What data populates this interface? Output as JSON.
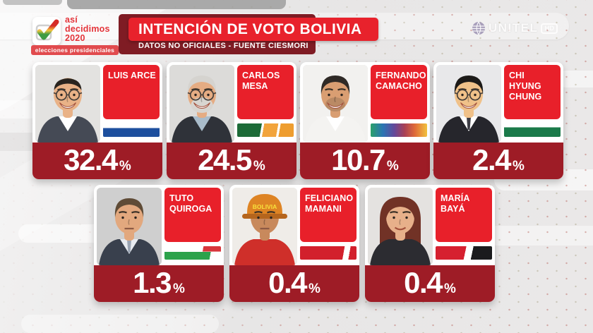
{
  "branding": {
    "logo": {
      "line1": "así",
      "line2": "decidimos",
      "line3": "2020",
      "badge": "elecciones presidenciales",
      "icon": "checkmark-icon",
      "check_colors": [
        "#d52b27",
        "#f5c53c",
        "#3f9c44"
      ]
    },
    "channel": {
      "name": "UNITEL",
      "quality": "HD",
      "icon": "globe-icon"
    }
  },
  "header": {
    "title": "INTENCIÓN DE VOTO BOLIVIA",
    "subtitle": "DATOS NO OFICIALES - FUENTE CIESMORI"
  },
  "colors": {
    "title_red": "#e8222c",
    "panel_maroon": "#7f1c24",
    "card_name_red": "#e8202a",
    "percent_maroon": "#9e1c26",
    "background_gray": "#e7e6e6"
  },
  "chart_data": {
    "type": "table",
    "title": "INTENCIÓN DE VOTO BOLIVIA",
    "subtitle": "DATOS NO OFICIALES - FUENTE CIESMORI",
    "unit": "%",
    "categories": [
      "LUIS ARCE",
      "CARLOS MESA",
      "FERNANDO CAMACHO",
      "CHI HYUNG CHUNG",
      "TUTO QUIROGA",
      "FELICIANO MAMANI",
      "MARÍA BAYÁ"
    ],
    "values": [
      32.4,
      24.5,
      10.7,
      2.4,
      1.3,
      0.4,
      0.4
    ]
  },
  "candidates": [
    {
      "name": "LUIS ARCE",
      "value": "32.4",
      "unit": "%",
      "row": 0,
      "col": 0,
      "flag_css": "linear-gradient(180deg,#ffffff 0 34%,#1d4f9e 34%)",
      "photo": {
        "bg": "#e3e2e0",
        "skin": "#e9b287",
        "hair": "#29241f",
        "hair_kind": "balding",
        "glasses": true,
        "expression": "bigsmile",
        "jacket": "#454a55",
        "shirt": "#ffffff"
      }
    },
    {
      "name": "CARLOS MESA",
      "value": "24.5",
      "unit": "%",
      "row": 0,
      "col": 1,
      "flag_css": "linear-gradient(100deg,#1d6b38 0 42%,#ffffff 42% 46%,#f2a43c 46% 70%,#ffffff 70% 74%,#ee9d2f 74%)",
      "photo": {
        "bg": "#dcdbd9",
        "skin": "#e5ac83",
        "hair": "#d5d3cf",
        "hair_kind": "top",
        "glasses": true,
        "beard": "#d8d5d0",
        "expression": "bigsmile",
        "jacket": "#2f3239",
        "shirt": "#a9bccb"
      }
    },
    {
      "name": "FERNANDO CAMACHO",
      "value": "10.7",
      "unit": "%",
      "row": 0,
      "col": 2,
      "flag_css": "linear-gradient(90deg,#2ba06a 0%,#2b74b4 22%,#64489a 42%,#a84056 60%,#df6a3a 78%,#f2c23e 100%)",
      "photo": {
        "bg": "#f2f1ef",
        "skin": "#d99e72",
        "hair": "#2f2a26",
        "hair_kind": "top",
        "glasses": false,
        "stubble": "#6b5646",
        "expression": "bigsmile",
        "jacket": "#f4f3f1",
        "shirt": "#ffffff"
      }
    },
    {
      "name": "CHI HYUNG CHUNG",
      "value": "2.4",
      "unit": "%",
      "row": 0,
      "col": 3,
      "flag_css": "linear-gradient(180deg,#ffffff 0 30%,#1b7a4a 30%)",
      "photo": {
        "bg": "#e8e8ea",
        "skin": "#f0c189",
        "hair": "#1c1a18",
        "hair_kind": "top",
        "glasses": true,
        "expression": "bigsmile",
        "jacket": "#26262c",
        "shirt": "#ffffff",
        "tie": "#3c3c44"
      }
    },
    {
      "name": "TUTO QUIROGA",
      "value": "1.3",
      "unit": "%",
      "row": 1,
      "col": 0,
      "flag_css": "linear-gradient(100deg,rgba(255,255,255,0) 0 68%,#d8353b 68%) 0 0/100% 40% no-repeat,linear-gradient(100deg,#2ca24b 0 80%,#ffffff 80%) 0 100%/100% 60% no-repeat,#ffffff",
      "photo": {
        "bg": "#cfcfcf",
        "skin": "#e2a87e",
        "hair": "#5f4b36",
        "hair_kind": "top",
        "glasses": false,
        "expression": "neutral",
        "jacket": "#39404d",
        "shirt": "#e8ebf0",
        "tie": "#9aa4b3"
      }
    },
    {
      "name": "FELICIANO MAMANI",
      "value": "0.4",
      "unit": "%",
      "row": 1,
      "col": 1,
      "flag_css": "linear-gradient(100deg,#d2202c 0 76%,#ffffff 76% 86%,#d2202c 86%)",
      "photo": {
        "bg": "#efece8",
        "skin": "#c8895c",
        "hair_kind": "helmet",
        "helmet": "#de8424",
        "helmet_dark": "#b5651d",
        "helmet_text": "BOLIVIA",
        "helmet_text_color": "#f7e03c",
        "glasses": false,
        "expression": "neutral",
        "jacket": "#cf2f2a"
      }
    },
    {
      "name": "MARÍA BAYÁ",
      "value": "0.4",
      "unit": "%",
      "row": 1,
      "col": 2,
      "flag_css": "linear-gradient(102deg,#d6202f 0 52%,#ffffff 52% 64%,#1b1b1d 64%)",
      "photo": {
        "bg": "#e4e2e0",
        "skin": "#e7b08a",
        "hair": "#713226",
        "hair_kind": "long",
        "glasses": false,
        "expression": "smile",
        "jacket": "#2c2c31"
      }
    }
  ]
}
